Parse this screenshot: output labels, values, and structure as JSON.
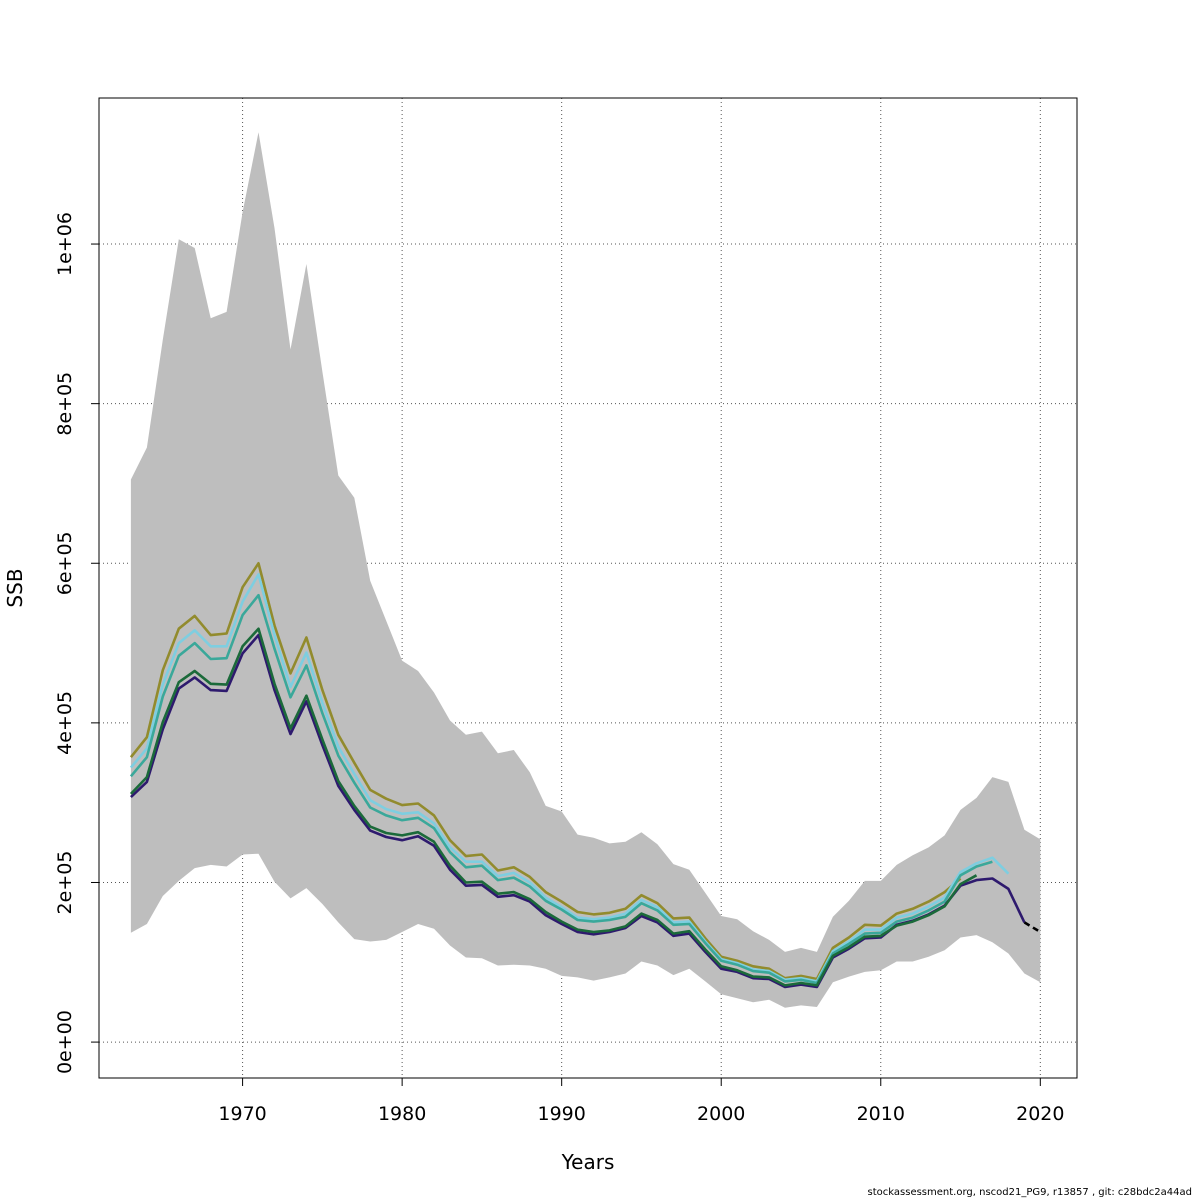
{
  "chart_data": {
    "type": "line",
    "xlabel": "Years",
    "ylabel": "SSB",
    "xlim": [
      1961,
      2022.3
    ],
    "ylim": [
      -45000,
      1183000
    ],
    "grid": true,
    "x_ticks": [
      1970,
      1980,
      1990,
      2000,
      2010,
      2020
    ],
    "x_tick_labels": [
      "1970",
      "1980",
      "1990",
      "2000",
      "2010",
      "2020"
    ],
    "y_ticks": [
      0,
      200000,
      400000,
      600000,
      800000,
      1000000
    ],
    "y_tick_labels": [
      "0e+00",
      "2e+05",
      "4e+05",
      "6e+05",
      "8e+05",
      "1e+06"
    ],
    "confidence_band": {
      "color": "#bebebe",
      "x": [
        1963,
        1964,
        1965,
        1966,
        1967,
        1968,
        1969,
        1970,
        1971,
        1972,
        1973,
        1974,
        1975,
        1976,
        1977,
        1978,
        1979,
        1980,
        1981,
        1982,
        1983,
        1984,
        1985,
        1986,
        1987,
        1988,
        1989,
        1990,
        1991,
        1992,
        1993,
        1994,
        1995,
        1996,
        1997,
        1998,
        1999,
        2000,
        2001,
        2002,
        2003,
        2004,
        2005,
        2006,
        2007,
        2008,
        2009,
        2010,
        2011,
        2012,
        2013,
        2014,
        2015,
        2016,
        2017,
        2018,
        2019,
        2020
      ],
      "upper": [
        705000,
        745000,
        880000,
        1006000,
        995000,
        907000,
        915000,
        1040000,
        1140000,
        1020000,
        868000,
        975000,
        840000,
        710000,
        682000,
        578000,
        528000,
        478000,
        465000,
        438000,
        403000,
        385000,
        389000,
        362000,
        366000,
        338000,
        296000,
        289000,
        260000,
        256000,
        249000,
        251000,
        263000,
        248000,
        223000,
        216000,
        187000,
        158000,
        154000,
        139000,
        128000,
        113000,
        118000,
        113000,
        157000,
        177000,
        202000,
        202000,
        222000,
        234000,
        244000,
        259000,
        291000,
        306000,
        332000,
        326000,
        266000,
        254000
      ],
      "lower": [
        137000,
        148000,
        183000,
        202000,
        218000,
        222000,
        220000,
        235000,
        236000,
        201000,
        180000,
        193000,
        173000,
        150000,
        129000,
        126000,
        128000,
        138000,
        148000,
        142000,
        121000,
        106000,
        105000,
        96000,
        97000,
        96000,
        92000,
        83000,
        81000,
        77000,
        81000,
        86000,
        101000,
        96000,
        84000,
        92000,
        76000,
        60000,
        55000,
        50000,
        53000,
        43000,
        46000,
        44000,
        75000,
        82000,
        88000,
        90000,
        101000,
        101000,
        107000,
        115000,
        131000,
        134000,
        125000,
        111000,
        86000,
        75000
      ]
    },
    "series": [
      {
        "color": "#928b2d",
        "x": [
          1963,
          1964,
          1965,
          1966,
          1967,
          1968,
          1969,
          1970,
          1971,
          1972,
          1973,
          1974,
          1975,
          1976,
          1977,
          1978,
          1979,
          1980,
          1981,
          1982,
          1983,
          1984,
          1985,
          1986,
          1987,
          1988,
          1989,
          1990,
          1991,
          1992,
          1993,
          1994,
          1995,
          1996,
          1997,
          1998,
          1999,
          2000,
          2001,
          2002,
          2003,
          2004,
          2005,
          2006,
          2007,
          2008,
          2009,
          2010,
          2011,
          2012,
          2013,
          2014,
          2015
        ],
        "values": [
          357000,
          382000,
          466000,
          518000,
          534000,
          510000,
          512000,
          570000,
          600000,
          522000,
          462000,
          507000,
          441000,
          385000,
          350000,
          316000,
          305000,
          297000,
          299000,
          284000,
          253000,
          233000,
          235000,
          215000,
          219000,
          207000,
          188000,
          176000,
          163000,
          160000,
          162000,
          167000,
          184000,
          174000,
          155000,
          156000,
          130000,
          107000,
          102000,
          95000,
          92000,
          80000,
          83000,
          79000,
          118000,
          131000,
          147000,
          146000,
          161000,
          167000,
          176000,
          188000,
          205000
        ]
      },
      {
        "color": "#7ecee0",
        "x": [
          1963,
          1964,
          1965,
          1966,
          1967,
          1968,
          1969,
          1970,
          1971,
          1972,
          1973,
          1974,
          1975,
          1976,
          1977,
          1978,
          1979,
          1980,
          1981,
          1982,
          1983,
          1984,
          1985,
          1986,
          1987,
          1988,
          1989,
          1990,
          1991,
          1992,
          1993,
          1994,
          1995,
          1996,
          1997,
          1998,
          1999,
          2000,
          2001,
          2002,
          2003,
          2004,
          2005,
          2006,
          2007,
          2008,
          2009,
          2010,
          2011,
          2012,
          2013,
          2014,
          2015,
          2016,
          2017,
          2018
        ],
        "values": [
          344000,
          368000,
          448000,
          500000,
          516000,
          496000,
          496000,
          552000,
          586000,
          510000,
          445000,
          488000,
          425000,
          370000,
          336000,
          303000,
          292000,
          286000,
          288000,
          274000,
          244000,
          226000,
          226000,
          208000,
          212000,
          200000,
          181000,
          169000,
          156000,
          154000,
          156000,
          161000,
          178000,
          169000,
          150000,
          151000,
          126000,
          104000,
          99000,
          91000,
          89000,
          78000,
          80000,
          76000,
          114000,
          126000,
          141000,
          141000,
          156000,
          161000,
          170000,
          181000,
          213000,
          224000,
          231000,
          211000
        ]
      },
      {
        "color": "#3aa89a",
        "x": [
          1963,
          1964,
          1965,
          1966,
          1967,
          1968,
          1969,
          1970,
          1971,
          1972,
          1973,
          1974,
          1975,
          1976,
          1977,
          1978,
          1979,
          1980,
          1981,
          1982,
          1983,
          1984,
          1985,
          1986,
          1987,
          1988,
          1989,
          1990,
          1991,
          1992,
          1993,
          1994,
          1995,
          1996,
          1997,
          1998,
          1999,
          2000,
          2001,
          2002,
          2003,
          2004,
          2005,
          2006,
          2007,
          2008,
          2009,
          2010,
          2011,
          2012,
          2013,
          2014,
          2015,
          2016,
          2017
        ],
        "values": [
          333000,
          357000,
          433000,
          484000,
          500000,
          480000,
          481000,
          535000,
          560000,
          493000,
          432000,
          472000,
          412000,
          359000,
          325000,
          294000,
          284000,
          278000,
          281000,
          268000,
          238000,
          219000,
          221000,
          203000,
          206000,
          195000,
          177000,
          166000,
          153000,
          151000,
          153000,
          157000,
          174000,
          165000,
          147000,
          148000,
          124000,
          102000,
          97000,
          89000,
          87000,
          76000,
          78000,
          74000,
          111000,
          123000,
          136000,
          137000,
          151000,
          156000,
          165000,
          176000,
          209000,
          220000,
          226000
        ]
      },
      {
        "color": "#2e1a6e",
        "x": [
          1963,
          1964,
          1965,
          1966,
          1967,
          1968,
          1969,
          1970,
          1971,
          1972,
          1973,
          1974,
          1975,
          1976,
          1977,
          1978,
          1979,
          1980,
          1981,
          1982,
          1983,
          1984,
          1985,
          1986,
          1987,
          1988,
          1989,
          1990,
          1991,
          1992,
          1993,
          1994,
          1995,
          1996,
          1997,
          1998,
          1999,
          2000,
          2001,
          2002,
          2003,
          2004,
          2005,
          2006,
          2007,
          2008,
          2009,
          2010,
          2011,
          2012,
          2013,
          2014,
          2015,
          2016,
          2017,
          2018,
          2019
        ],
        "values": [
          307000,
          326000,
          392000,
          443000,
          457000,
          441000,
          440000,
          487000,
          510000,
          441000,
          386000,
          427000,
          372000,
          321000,
          291000,
          265000,
          257000,
          253000,
          258000,
          246000,
          216000,
          196000,
          197000,
          182000,
          184000,
          176000,
          159000,
          148000,
          138000,
          135000,
          138000,
          143000,
          158000,
          150000,
          133000,
          136000,
          113000,
          92000,
          88000,
          80000,
          79000,
          69000,
          72000,
          69000,
          106000,
          117000,
          130000,
          131000,
          147000,
          152000,
          160000,
          171000,
          196000,
          203000,
          205000,
          192000,
          150000
        ]
      },
      {
        "color": "#1b6a3a",
        "x": [
          1963,
          1964,
          1965,
          1966,
          1967,
          1968,
          1969,
          1970,
          1971,
          1972,
          1973,
          1974,
          1975,
          1976,
          1977,
          1978,
          1979,
          1980,
          1981,
          1982,
          1983,
          1984,
          1985,
          1986,
          1987,
          1988,
          1989,
          1990,
          1991,
          1992,
          1993,
          1994,
          1995,
          1996,
          1997,
          1998,
          1999,
          2000,
          2001,
          2002,
          2003,
          2004,
          2005,
          2006,
          2007,
          2008,
          2009,
          2010,
          2011,
          2012,
          2013,
          2014,
          2015,
          2016
        ],
        "values": [
          311000,
          332000,
          401000,
          451000,
          465000,
          449000,
          448000,
          496000,
          518000,
          449000,
          393000,
          434000,
          379000,
          327000,
          296000,
          270000,
          262000,
          259000,
          263000,
          251000,
          221000,
          200000,
          201000,
          186000,
          188000,
          179000,
          163000,
          151000,
          141000,
          138000,
          140000,
          145000,
          161000,
          153000,
          136000,
          139000,
          116000,
          95000,
          90000,
          82000,
          81000,
          71000,
          74000,
          71000,
          108000,
          119000,
          132000,
          133000,
          146000,
          151000,
          159000,
          170000,
          198000,
          209000
        ]
      },
      {
        "color": "#000000",
        "style": "dashed",
        "x": [
          2019,
          2020
        ],
        "values": [
          150000,
          138000
        ]
      }
    ]
  },
  "footer_text": "stockassessment.org, nscod21_PG9, r13857 , git: c28bdc2a44ad"
}
